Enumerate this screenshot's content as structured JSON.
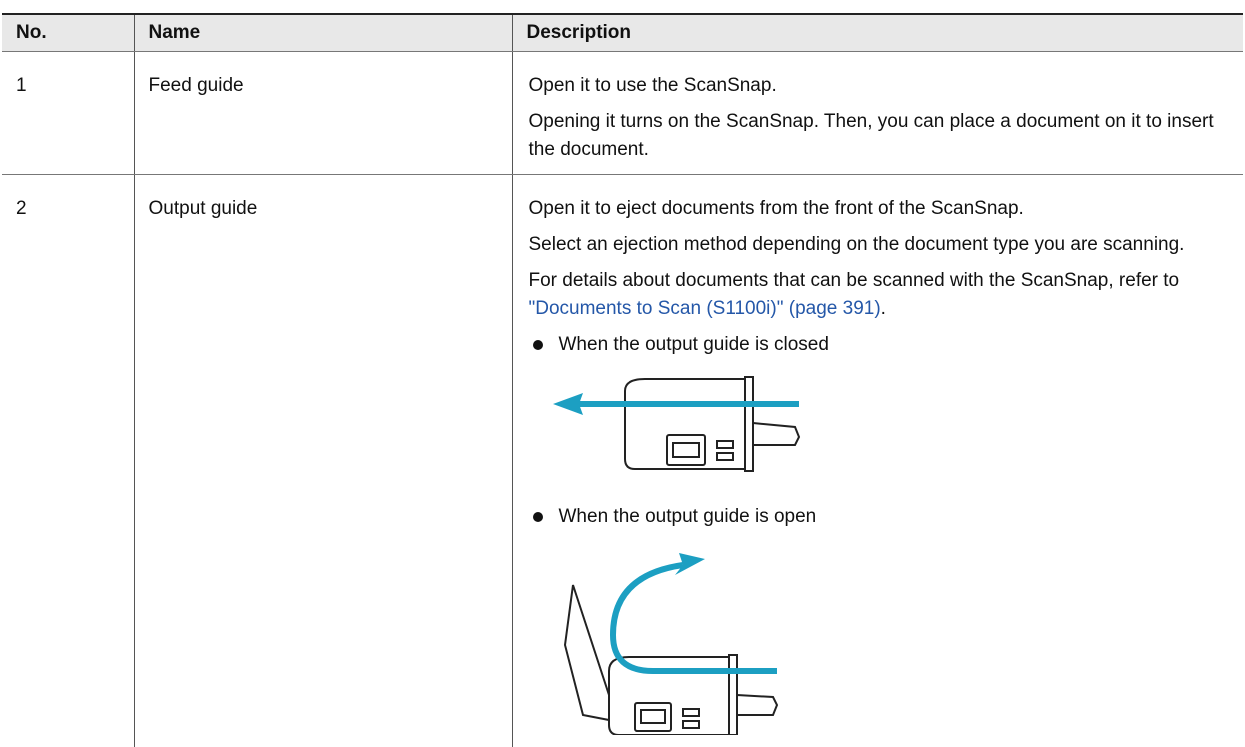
{
  "table": {
    "header": [
      "No.",
      "Name",
      "Description"
    ],
    "rows": [
      {
        "no": "1",
        "name": "Feed guide",
        "description": [
          "Open it to use the ScanSnap.",
          "Opening it turns on the ScanSnap. Then, you can place a document on it to insert the document."
        ]
      },
      {
        "no": "2",
        "name": "Output guide",
        "description": [
          "Open it to eject documents from the front of the ScanSnap.",
          "Select an ejection method depending on the document type you are scanning."
        ],
        "reference": {
          "text": "For details about documents that can be scanned with the ScanSnap, refer to ",
          "link": "\"Documents to Scan (S1100i)\" (page 391)",
          "end": "."
        },
        "bullets": [
          "When the output guide is closed",
          "When the output guide is open"
        ]
      }
    ]
  }
}
